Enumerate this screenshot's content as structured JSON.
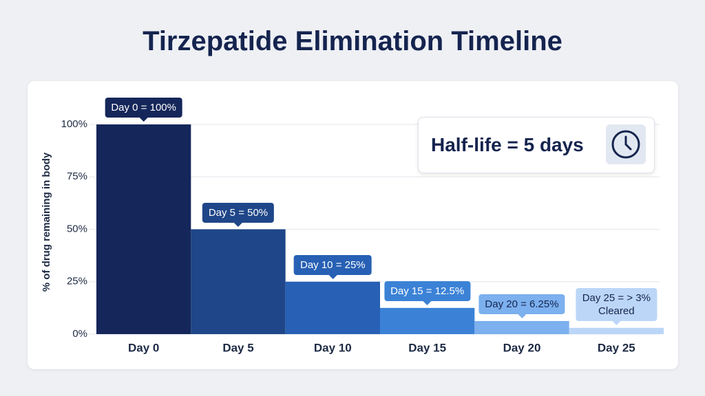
{
  "chart_data": {
    "type": "bar",
    "title": "Tirzepatide Elimination Timeline",
    "y_label": "% of drug remaining in body",
    "annotation": "Half-life = 5 days",
    "categories": [
      "Day 0",
      "Day 5",
      "Day 10",
      "Day 15",
      "Day 20",
      "Day 25"
    ],
    "values": [
      100,
      50,
      25,
      12.5,
      6.25,
      3
    ],
    "value_labels": [
      "Day 0 = 100%",
      "Day 5 = 50%",
      "Day 10 = 25%",
      "Day 15 = 12.5%",
      "Day 20 = 6.25%",
      "Day 25 = > 3%\nCleared"
    ],
    "colors": [
      "#15275a",
      "#1f4688",
      "#2760b4",
      "#3b82d6",
      "#7cb0ee",
      "#bcd6f7"
    ],
    "ylim": [
      0,
      100
    ],
    "yticks": [
      {
        "value": 0,
        "label": "0%"
      },
      {
        "value": 25,
        "label": "25%"
      },
      {
        "value": 50,
        "label": "50%"
      },
      {
        "value": 75,
        "label": "75%"
      },
      {
        "value": 100,
        "label": "100%"
      }
    ],
    "grid": true
  }
}
